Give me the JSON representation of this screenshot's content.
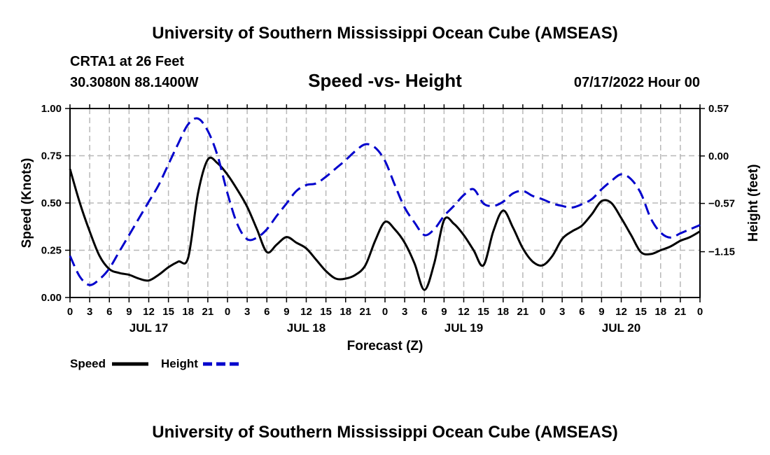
{
  "header": {
    "title": "University of Southern Mississippi Ocean Cube (AMSEAS)",
    "station": "CRTA1 at 26 Feet",
    "coords": "30.3080N  88.1400W",
    "datetime": "07/17/2022 Hour 00",
    "footer_title": "University of Southern Mississippi Ocean Cube (AMSEAS)"
  },
  "legend": {
    "speed_label": "Speed",
    "height_label": "Height"
  },
  "colors": {
    "speed": "#000000",
    "height": "#0000cc",
    "grid": "#b8b8b8"
  },
  "chart_data": {
    "type": "line",
    "title": "Speed -vs- Height",
    "xlabel": "Forecast (Z)",
    "ylabel": "Speed (Knots)",
    "y2label": "Height (feet)",
    "xlim": [
      0,
      96
    ],
    "ylim": [
      0,
      1.0
    ],
    "y2lim": [
      -1.7,
      0.57
    ],
    "x_ticks": [
      0,
      3,
      6,
      9,
      12,
      15,
      18,
      21,
      24,
      27,
      30,
      33,
      36,
      39,
      42,
      45,
      48,
      51,
      54,
      57,
      60,
      63,
      66,
      69,
      72,
      75,
      78,
      81,
      84,
      87,
      90,
      93,
      96
    ],
    "x_tick_labels": [
      "0",
      "3",
      "6",
      "9",
      "12",
      "15",
      "18",
      "21",
      "0",
      "3",
      "6",
      "9",
      "12",
      "15",
      "18",
      "21",
      "0",
      "3",
      "6",
      "9",
      "12",
      "15",
      "18",
      "21",
      "0",
      "3",
      "6",
      "9",
      "12",
      "15",
      "18",
      "21",
      "0"
    ],
    "day_labels": [
      {
        "x": 12,
        "label": "JUL 17"
      },
      {
        "x": 36,
        "label": "JUL 18"
      },
      {
        "x": 60,
        "label": "JUL 19"
      },
      {
        "x": 84,
        "label": "JUL 20"
      }
    ],
    "y_ticks": [
      0,
      0.25,
      0.5,
      0.75,
      1.0
    ],
    "y_tick_labels": [
      "0.00",
      "0.25",
      "0.50",
      "0.75",
      "1.00"
    ],
    "y2_ticks": [
      0.57,
      0.0,
      -0.57,
      -1.15
    ],
    "y2_tick_labels": [
      "0.57",
      "0.00",
      "−0.57",
      "−1.15"
    ],
    "series": [
      {
        "name": "Speed",
        "axis": "left",
        "x": [
          0,
          1.5,
          3,
          4.5,
          6,
          7.5,
          9,
          10.5,
          12,
          13.5,
          15,
          16.5,
          18,
          19.5,
          21,
          22.5,
          24,
          25.5,
          27,
          28.5,
          30,
          31.5,
          33,
          34.5,
          36,
          37.5,
          39,
          40.5,
          42,
          43.5,
          45,
          46.5,
          48,
          49.5,
          51,
          52.5,
          54,
          55.5,
          57,
          58.5,
          60,
          61.5,
          63,
          64.5,
          66,
          67.5,
          69,
          70.5,
          72,
          73.5,
          75,
          76.5,
          78,
          79.5,
          81,
          82.5,
          84,
          85.5,
          87,
          88.5,
          90,
          91.5,
          93,
          94.5,
          96
        ],
        "values": [
          0.68,
          0.5,
          0.35,
          0.22,
          0.15,
          0.13,
          0.12,
          0.1,
          0.09,
          0.12,
          0.16,
          0.19,
          0.21,
          0.55,
          0.73,
          0.71,
          0.65,
          0.57,
          0.48,
          0.36,
          0.24,
          0.28,
          0.32,
          0.29,
          0.26,
          0.2,
          0.14,
          0.1,
          0.1,
          0.12,
          0.17,
          0.3,
          0.4,
          0.36,
          0.29,
          0.18,
          0.04,
          0.18,
          0.41,
          0.39,
          0.33,
          0.25,
          0.17,
          0.35,
          0.46,
          0.37,
          0.26,
          0.19,
          0.17,
          0.22,
          0.31,
          0.35,
          0.38,
          0.44,
          0.51,
          0.5,
          0.42,
          0.33,
          0.24,
          0.23,
          0.25,
          0.27,
          0.3,
          0.32,
          0.35
        ]
      },
      {
        "name": "Height",
        "axis": "right",
        "x": [
          0,
          1.5,
          3,
          4.5,
          6,
          7.5,
          9,
          10.5,
          12,
          13.5,
          15,
          16.5,
          18,
          19.5,
          21,
          22.5,
          24,
          25.5,
          27,
          28.5,
          30,
          31.5,
          33,
          34.5,
          36,
          37.5,
          39,
          40.5,
          42,
          43.5,
          45,
          46.5,
          48,
          49.5,
          51,
          52.5,
          54,
          55.5,
          57,
          58.5,
          60,
          61.5,
          63,
          64.5,
          66,
          67.5,
          69,
          70.5,
          72,
          73.5,
          75,
          76.5,
          78,
          79.5,
          81,
          82.5,
          84,
          85.5,
          87,
          88.5,
          90,
          91.5,
          93,
          94.5,
          96
        ],
        "values": [
          -1.2,
          -1.45,
          -1.55,
          -1.48,
          -1.35,
          -1.15,
          -0.95,
          -0.75,
          -0.55,
          -0.35,
          -0.1,
          0.15,
          0.38,
          0.45,
          0.3,
          0.0,
          -0.45,
          -0.82,
          -1.0,
          -0.98,
          -0.88,
          -0.72,
          -0.57,
          -0.42,
          -0.35,
          -0.33,
          -0.25,
          -0.15,
          -0.05,
          0.06,
          0.14,
          0.1,
          -0.06,
          -0.35,
          -0.62,
          -0.8,
          -0.95,
          -0.88,
          -0.72,
          -0.6,
          -0.47,
          -0.4,
          -0.57,
          -0.6,
          -0.55,
          -0.45,
          -0.42,
          -0.48,
          -0.52,
          -0.57,
          -0.6,
          -0.62,
          -0.58,
          -0.52,
          -0.4,
          -0.3,
          -0.22,
          -0.28,
          -0.45,
          -0.75,
          -0.92,
          -0.98,
          -0.93,
          -0.88,
          -0.83
        ]
      }
    ]
  }
}
